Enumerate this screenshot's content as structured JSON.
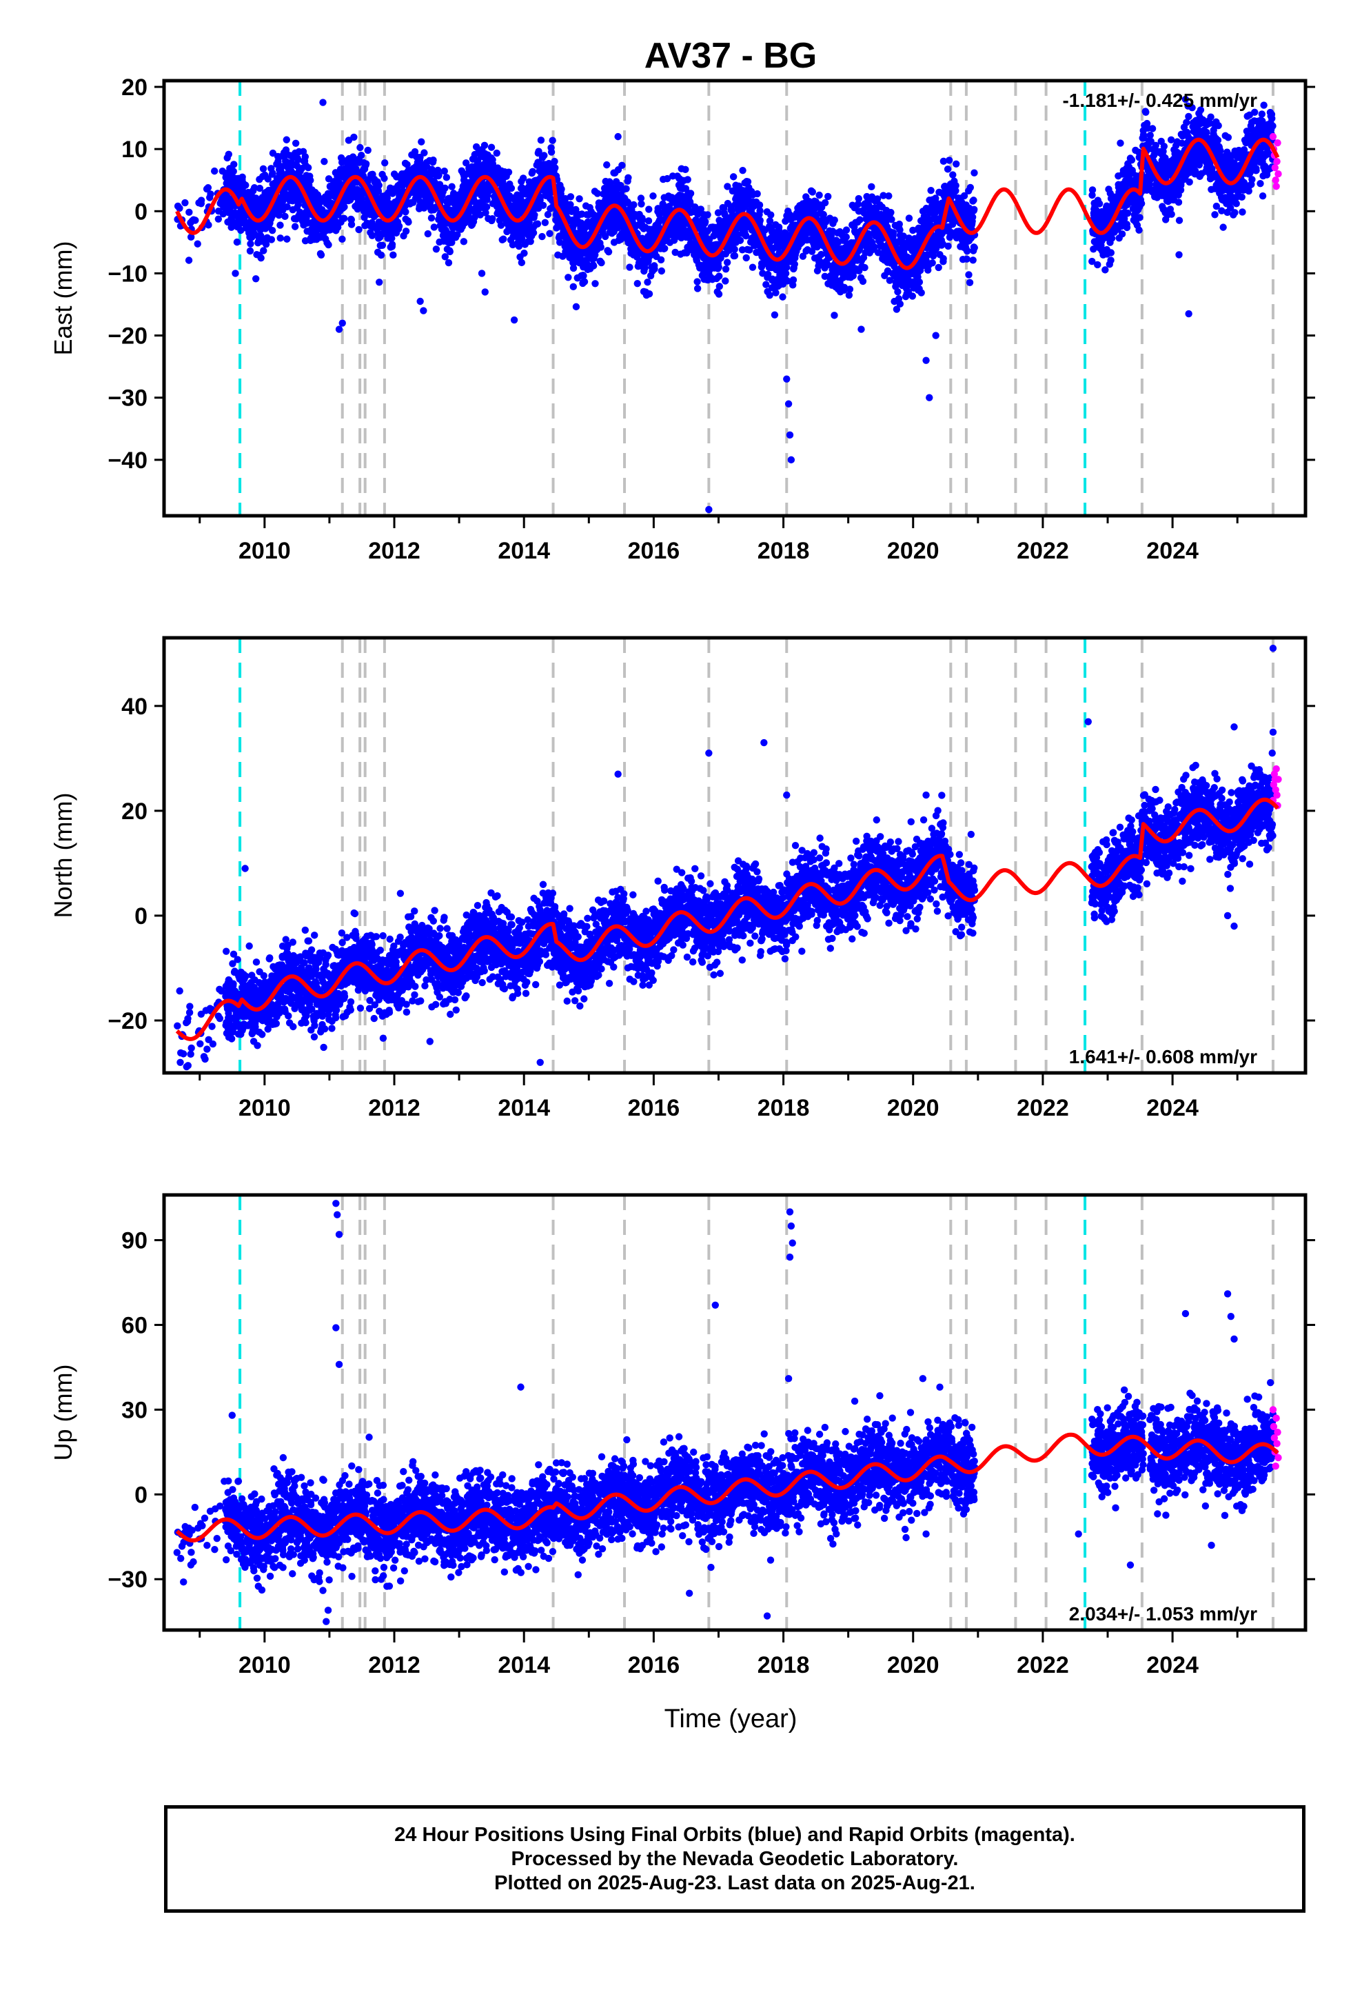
{
  "chart_title": "AV37 - BG",
  "x_axis_label": "Time (year)",
  "footer": {
    "line1": "24 Hour Positions Using Final Orbits (blue) and Rapid Orbits (magenta).",
    "line2": "Processed by the Nevada Geodetic Laboratory.",
    "line3": "Plotted on 2025-Aug-23. Last data on 2025-Aug-21."
  },
  "colors": {
    "final_orbits": "#0000ff",
    "rapid_orbits": "#ff00ff",
    "model_fit": "#ff0000",
    "equipment_change": "#c0c0c0",
    "earthquake": "#00e5e5"
  },
  "chart_data": [
    {
      "type": "scatter",
      "title": "AV37 - BG",
      "ylabel": "East (mm)",
      "xlabel": "",
      "xlim": [
        2008.45,
        2026.05
      ],
      "ylim": [
        -49,
        21
      ],
      "yticks": [
        -40,
        -30,
        -20,
        -10,
        0,
        10,
        20
      ],
      "xticks": [
        2010,
        2012,
        2014,
        2016,
        2018,
        2020,
        2022,
        2024
      ],
      "rate_label": "-1.181+/- 0.425 mm/yr",
      "rate_position": "top-right",
      "grid": false,
      "series": [
        {
          "name": "Final Orbits",
          "color": "#0000ff",
          "trend": [
            [
              2008.65,
              0
            ],
            [
              2009.6,
              0
            ],
            [
              2009.65,
              2
            ],
            [
              2014.45,
              2
            ],
            [
              2014.5,
              -2
            ],
            [
              2020.45,
              -6
            ],
            [
              2020.55,
              0
            ],
            [
              2023.5,
              0
            ],
            [
              2023.55,
              8
            ],
            [
              2025.6,
              8
            ]
          ],
          "seasonal_amplitude": 3.2,
          "scatter": 2.8,
          "gaps": [
            [
              2020.95,
              2022.75
            ]
          ],
          "outliers": [
            [
              2011.15,
              -19
            ],
            [
              2011.2,
              -18
            ],
            [
              2012.4,
              -14.5
            ],
            [
              2012.45,
              -16
            ],
            [
              2013.35,
              -10
            ],
            [
              2013.4,
              -13
            ],
            [
              2013.85,
              -17.5
            ],
            [
              2016.85,
              -48
            ],
            [
              2018.05,
              -27
            ],
            [
              2018.08,
              -31
            ],
            [
              2018.1,
              -36
            ],
            [
              2018.12,
              -40
            ],
            [
              2020.2,
              -24
            ],
            [
              2020.25,
              -30
            ],
            [
              2020.35,
              -20
            ],
            [
              2024.25,
              -16.5
            ],
            [
              2024.1,
              -7
            ],
            [
              2010.9,
              17.5
            ],
            [
              2019.2,
              -19
            ],
            [
              2015.45,
              12
            ],
            [
              2009.55,
              -10
            ],
            [
              2024.2,
              18
            ]
          ]
        },
        {
          "name": "Rapid Orbits",
          "color": "#ff00ff",
          "points": [
            [
              2025.55,
              12
            ],
            [
              2025.56,
              10
            ],
            [
              2025.57,
              9
            ],
            [
              2025.58,
              7
            ],
            [
              2025.59,
              5
            ],
            [
              2025.6,
              4
            ],
            [
              2025.61,
              8
            ],
            [
              2025.62,
              11
            ],
            [
              2025.63,
              6
            ]
          ]
        },
        {
          "name": "Model",
          "color": "#ff0000",
          "fit": [
            [
              2008.65,
              0
            ],
            [
              2009.6,
              0
            ],
            [
              2009.65,
              2
            ],
            [
              2014.45,
              2
            ],
            [
              2014.5,
              -2
            ],
            [
              2020.45,
              -6
            ],
            [
              2020.55,
              0
            ],
            [
              2023.5,
              0
            ],
            [
              2023.55,
              8
            ],
            [
              2025.6,
              8
            ]
          ],
          "seasonal_amplitude": 3.5
        }
      ]
    },
    {
      "type": "scatter",
      "ylabel": "North (mm)",
      "xlabel": "",
      "xlim": [
        2008.45,
        2026.05
      ],
      "ylim": [
        -30,
        53
      ],
      "yticks": [
        -20,
        0,
        20,
        40
      ],
      "xticks": [
        2010,
        2012,
        2014,
        2016,
        2018,
        2020,
        2022,
        2024
      ],
      "rate_label": "1.641+/- 0.608 mm/yr",
      "rate_position": "bottom-right",
      "grid": false,
      "series": [
        {
          "name": "Final Orbits",
          "color": "#0000ff",
          "trend": [
            [
              2008.65,
              -22
            ],
            [
              2009.6,
              -18
            ],
            [
              2009.65,
              -16
            ],
            [
              2014.45,
              -4
            ],
            [
              2014.5,
              -7
            ],
            [
              2020.45,
              9
            ],
            [
              2020.55,
              5
            ],
            [
              2023.5,
              9
            ],
            [
              2023.55,
              16
            ],
            [
              2025.6,
              20
            ]
          ],
          "seasonal_amplitude": 2.5,
          "scatter": 3.5,
          "gaps": [
            [
              2020.95,
              2022.75
            ]
          ],
          "outliers": [
            [
              2009.7,
              9
            ],
            [
              2015.45,
              27
            ],
            [
              2016.85,
              31
            ],
            [
              2017.7,
              33
            ],
            [
              2018.05,
              23
            ],
            [
              2014.25,
              -28
            ],
            [
              2008.7,
              -28
            ],
            [
              2012.55,
              -24
            ],
            [
              2022.7,
              37
            ],
            [
              2025.55,
              51
            ],
            [
              2025.55,
              35
            ],
            [
              2024.85,
              0
            ],
            [
              2024.95,
              -2
            ],
            [
              2024.95,
              36
            ],
            [
              2020.2,
              23
            ]
          ]
        },
        {
          "name": "Rapid Orbits",
          "color": "#ff00ff",
          "points": [
            [
              2025.55,
              22
            ],
            [
              2025.56,
              25
            ],
            [
              2025.57,
              27
            ],
            [
              2025.58,
              26
            ],
            [
              2025.59,
              24
            ],
            [
              2025.6,
              28
            ],
            [
              2025.61,
              23
            ],
            [
              2025.62,
              21
            ],
            [
              2025.63,
              26
            ]
          ]
        },
        {
          "name": "Model",
          "color": "#ff0000",
          "fit": [
            [
              2008.65,
              -22
            ],
            [
              2009.6,
              -18
            ],
            [
              2009.65,
              -16
            ],
            [
              2014.45,
              -4
            ],
            [
              2014.5,
              -7
            ],
            [
              2020.45,
              9
            ],
            [
              2020.55,
              5
            ],
            [
              2023.5,
              9
            ],
            [
              2023.55,
              16
            ],
            [
              2025.6,
              20
            ]
          ],
          "seasonal_amplitude": 2.5
        }
      ]
    },
    {
      "type": "scatter",
      "ylabel": "Up (mm)",
      "xlabel": "Time (year)",
      "xlim": [
        2008.45,
        2026.05
      ],
      "ylim": [
        -48,
        106
      ],
      "yticks": [
        -30,
        0,
        30,
        60,
        90
      ],
      "xticks": [
        2010,
        2012,
        2014,
        2016,
        2018,
        2020,
        2022,
        2024
      ],
      "rate_label": "2.034+/- 1.053 mm/yr",
      "rate_position": "bottom-right",
      "grid": false,
      "series": [
        {
          "name": "Final Orbits",
          "color": "#0000ff",
          "trend": [
            [
              2008.65,
              -13
            ],
            [
              2014.45,
              -8
            ],
            [
              2014.5,
              -6
            ],
            [
              2020.45,
              10
            ],
            [
              2020.55,
              10
            ],
            [
              2022.5,
              18
            ],
            [
              2022.55,
              18
            ],
            [
              2025.6,
              14
            ]
          ],
          "seasonal_amplitude": 3,
          "scatter": 7,
          "gaps": [
            [
              2020.95,
              2022.75
            ],
            [
              2023.55,
              2023.65
            ]
          ],
          "outliers": [
            [
              2011.1,
              103
            ],
            [
              2011.12,
              99
            ],
            [
              2011.15,
              92
            ],
            [
              2011.1,
              59
            ],
            [
              2011.15,
              46
            ],
            [
              2018.1,
              100
            ],
            [
              2018.12,
              95
            ],
            [
              2018.14,
              89
            ],
            [
              2018.1,
              84
            ],
            [
              2016.95,
              67
            ],
            [
              2018.08,
              41
            ],
            [
              2013.95,
              38
            ],
            [
              2009.5,
              28
            ],
            [
              2010.95,
              -45
            ],
            [
              2010.98,
              -41
            ],
            [
              2010.9,
              -34
            ],
            [
              2008.75,
              -31
            ],
            [
              2017.75,
              -43
            ],
            [
              2016.55,
              -35
            ],
            [
              2022.55,
              -14
            ],
            [
              2023.35,
              -25
            ],
            [
              2024.2,
              64
            ],
            [
              2024.85,
              71
            ],
            [
              2024.9,
              63
            ],
            [
              2024.95,
              55
            ],
            [
              2024.6,
              -18
            ],
            [
              2019.1,
              33
            ],
            [
              2020.15,
              41
            ],
            [
              2020.2,
              -14
            ]
          ]
        },
        {
          "name": "Rapid Orbits",
          "color": "#ff00ff",
          "points": [
            [
              2025.55,
              30
            ],
            [
              2025.56,
              24
            ],
            [
              2025.57,
              20
            ],
            [
              2025.58,
              15
            ],
            [
              2025.59,
              10
            ],
            [
              2025.6,
              27
            ],
            [
              2025.61,
              18
            ],
            [
              2025.62,
              22
            ],
            [
              2025.63,
              13
            ]
          ]
        },
        {
          "name": "Model",
          "color": "#ff0000",
          "fit": [
            [
              2008.65,
              -13
            ],
            [
              2014.45,
              -8
            ],
            [
              2014.5,
              -6
            ],
            [
              2020.45,
              10
            ],
            [
              2020.55,
              10
            ],
            [
              2022.5,
              18
            ],
            [
              2022.55,
              18
            ],
            [
              2025.6,
              14
            ]
          ],
          "seasonal_amplitude": 3.5
        }
      ]
    }
  ],
  "equipment_change_years": [
    2011.2,
    2011.47,
    2011.55,
    2011.85,
    2014.45,
    2015.55,
    2016.85,
    2018.05,
    2020.58,
    2020.82,
    2021.58,
    2022.05,
    2023.53,
    2025.55
  ],
  "earthquake_years": [
    2009.62,
    2022.65
  ]
}
